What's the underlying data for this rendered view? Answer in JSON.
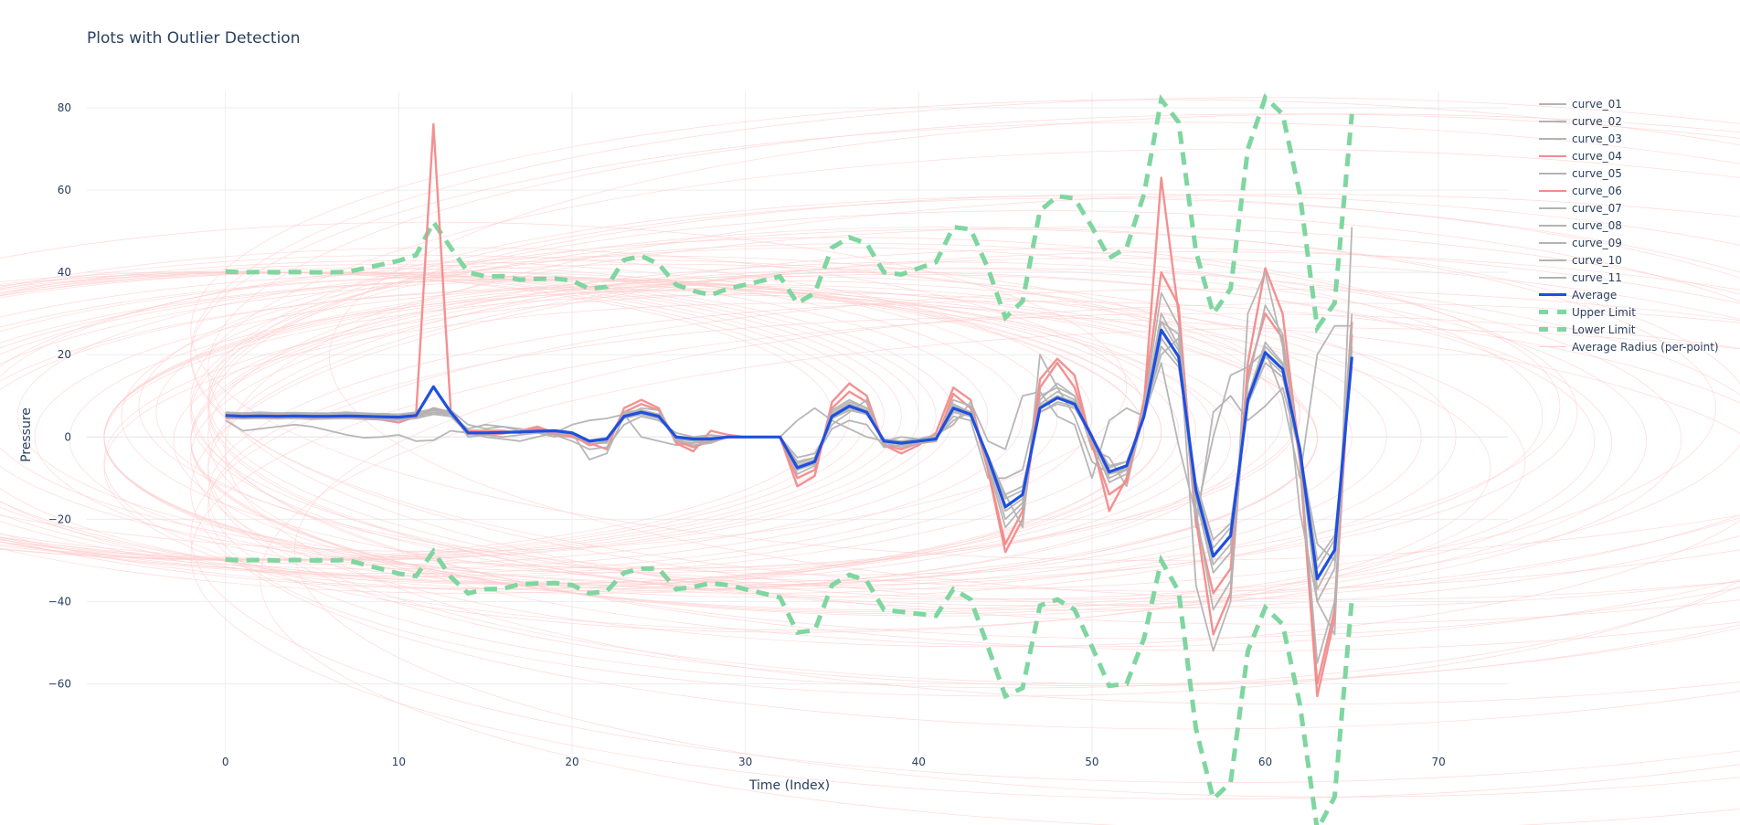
{
  "chart_data": {
    "type": "line",
    "title": "Plots with Outlier Detection",
    "xlabel": "Time (Index)",
    "ylabel": "Pressure",
    "xlim": [
      -8,
      74
    ],
    "ylim": [
      -77,
      84
    ],
    "x_ticks": [
      0,
      10,
      20,
      30,
      40,
      50,
      60,
      70
    ],
    "y_ticks": [
      -60,
      -40,
      -20,
      0,
      20,
      40,
      60,
      80
    ],
    "grid": true,
    "legend_position": "right",
    "colors": {
      "normal": "#b3b3b3",
      "outlier": "#f28b8b",
      "average": "#1f4fe0",
      "limit": "#7fd6a0",
      "radius": "#ffcccc"
    },
    "average": [
      5.2,
      5.0,
      5.1,
      5.0,
      5.1,
      5.0,
      5.0,
      5.1,
      5.0,
      4.9,
      4.8,
      5.2,
      12.2,
      6.0,
      1.0,
      1.0,
      1.1,
      1.2,
      1.4,
      1.5,
      1.0,
      -1.0,
      -0.5,
      5.0,
      6.0,
      5.0,
      0.0,
      -0.5,
      -0.5,
      0.0,
      0.0,
      0.0,
      0.0,
      -7.5,
      -6.0,
      5.0,
      7.5,
      6.0,
      -1.0,
      -1.5,
      -1.0,
      -0.5,
      7.0,
      5.5,
      -5.0,
      -17.0,
      -14.0,
      7.0,
      9.5,
      8.0,
      0.0,
      -8.5,
      -7.0,
      5.0,
      26.0,
      19.5,
      -13.0,
      -29.0,
      -24.0,
      9.0,
      20.5,
      16.5,
      -3.0,
      -34.5,
      -27.5,
      19.5
    ],
    "radius": [
      35,
      35,
      35,
      35,
      35,
      35,
      35,
      35,
      36,
      37,
      38,
      39,
      40,
      40,
      39,
      38,
      38,
      37,
      37,
      37,
      37,
      37,
      37,
      38,
      38,
      37,
      37,
      36,
      35,
      36,
      37,
      38,
      39,
      40,
      41,
      41,
      41,
      41,
      41,
      41,
      42,
      43,
      44,
      45,
      46,
      46,
      47,
      48,
      49,
      50,
      51,
      52,
      53,
      54,
      56,
      57,
      58,
      59,
      60,
      61,
      62,
      62,
      62,
      61,
      60,
      59
    ],
    "series": [
      {
        "name": "curve_01",
        "outlier": false,
        "values": [
          5.8,
          5.6,
          5.7,
          5.5,
          5.6,
          5.4,
          5.5,
          5.6,
          5.4,
          5.3,
          5.2,
          5.6,
          6.5,
          6.0,
          0.5,
          0.8,
          1.0,
          1.2,
          1.5,
          1.5,
          1.0,
          -1.0,
          -0.5,
          5.5,
          6.5,
          5.0,
          -0.5,
          -1.0,
          -0.5,
          0.0,
          0.0,
          0.0,
          0.0,
          -8.0,
          -6.5,
          6.0,
          8.5,
          7.0,
          -1.0,
          -2.0,
          -1.0,
          -0.5,
          8.0,
          6.0,
          -6.0,
          -20.0,
          -16.0,
          8.0,
          11.0,
          9.0,
          0.5,
          -10.0,
          -8.0,
          6.0,
          30.0,
          22.0,
          -15.0,
          -33.0,
          -28.0,
          10.0,
          23.0,
          18.0,
          -4.0,
          -40.0,
          -32.0,
          22.0
        ]
      },
      {
        "name": "curve_02",
        "outlier": false,
        "values": [
          4.8,
          4.6,
          4.9,
          4.7,
          4.8,
          4.6,
          4.7,
          4.8,
          4.6,
          4.5,
          4.4,
          4.8,
          6.0,
          5.5,
          1.0,
          1.2,
          1.3,
          1.4,
          1.6,
          1.7,
          1.2,
          -0.8,
          -0.2,
          4.5,
          5.5,
          4.5,
          0.2,
          -0.2,
          0.0,
          0.0,
          0.0,
          0.0,
          0.0,
          -7.0,
          -5.5,
          4.5,
          7.0,
          5.5,
          -0.5,
          -1.0,
          -0.5,
          0.0,
          6.5,
          5.0,
          -4.5,
          -15.0,
          -13.0,
          6.0,
          8.5,
          7.5,
          0.0,
          -7.5,
          -6.0,
          4.5,
          24.0,
          18.0,
          -12.0,
          -27.0,
          -22.0,
          8.5,
          19.5,
          15.5,
          -2.5,
          -32.0,
          -25.0,
          18.0
        ]
      },
      {
        "name": "curve_03",
        "outlier": false,
        "values": [
          4.0,
          1.5,
          2.0,
          2.5,
          3.0,
          2.5,
          1.5,
          0.5,
          -0.2,
          0.0,
          0.5,
          -1.0,
          -0.8,
          1.5,
          1.0,
          0.0,
          -0.5,
          -1.0,
          0.0,
          1.0,
          3.0,
          4.0,
          4.5,
          5.5,
          0.0,
          -1.0,
          -2.0,
          -1.5,
          -0.5,
          0.0,
          0.0,
          0.0,
          0.0,
          -6.0,
          -5.0,
          2.0,
          4.0,
          3.0,
          -2.5,
          -2.0,
          -1.5,
          0.0,
          5.0,
          4.0,
          -10.0,
          -10.0,
          -8.0,
          10.0,
          12.0,
          10.0,
          -3.0,
          -5.0,
          -12.0,
          6.0,
          20.0,
          24.0,
          -22.0,
          6.0,
          10.0,
          4.0,
          7.5,
          12.0,
          -4.0,
          -26.0,
          -30.0,
          30.0
        ]
      },
      {
        "name": "curve_04",
        "outlier": true,
        "values": [
          5.5,
          5.3,
          5.4,
          5.3,
          5.2,
          5.1,
          5.0,
          5.2,
          5.1,
          5.0,
          4.9,
          5.5,
          76.0,
          6.5,
          1.0,
          0.5,
          0.8,
          1.5,
          2.5,
          1.0,
          0.5,
          -2.0,
          -1.0,
          6.0,
          8.0,
          6.5,
          -1.0,
          -2.5,
          -1.0,
          0.0,
          0.0,
          0.0,
          0.0,
          -10.0,
          -8.0,
          7.0,
          11.0,
          8.5,
          -2.0,
          -3.0,
          -1.5,
          -1.0,
          10.5,
          7.0,
          -8.0,
          -28.0,
          -20.0,
          12.0,
          18.0,
          12.0,
          -1.0,
          -18.0,
          -10.0,
          8.0,
          63.0,
          30.0,
          -20.0,
          -38.0,
          -32.0,
          15.0,
          30.0,
          24.0,
          -6.0,
          -63.0,
          -44.0,
          28.0
        ]
      },
      {
        "name": "curve_05",
        "outlier": false,
        "values": [
          5.2,
          5.0,
          5.2,
          5.0,
          5.1,
          5.0,
          5.0,
          5.1,
          5.0,
          4.9,
          4.8,
          5.2,
          6.5,
          5.5,
          1.0,
          1.0,
          1.1,
          1.2,
          1.4,
          1.5,
          1.0,
          -1.0,
          -0.5,
          5.0,
          6.0,
          5.0,
          0.0,
          -0.5,
          -0.5,
          0.0,
          0.0,
          0.0,
          0.0,
          -7.5,
          -6.0,
          5.0,
          7.5,
          6.0,
          -1.0,
          -1.5,
          -1.0,
          -0.5,
          7.0,
          5.5,
          -5.0,
          -17.0,
          -14.0,
          7.0,
          9.5,
          8.0,
          0.0,
          -8.5,
          -7.0,
          5.0,
          26.0,
          19.5,
          -13.0,
          -29.0,
          -24.0,
          9.0,
          20.5,
          16.5,
          -3.0,
          -34.5,
          -27.5,
          19.5
        ]
      },
      {
        "name": "curve_06",
        "outlier": true,
        "values": [
          5.0,
          4.8,
          4.9,
          4.9,
          5.0,
          4.7,
          4.8,
          4.9,
          4.6,
          4.2,
          3.5,
          5.0,
          7.0,
          6.0,
          1.5,
          1.5,
          1.5,
          1.0,
          2.0,
          0.5,
          0.0,
          -1.5,
          -3.0,
          7.0,
          9.0,
          7.0,
          -1.5,
          -3.5,
          1.5,
          0.5,
          0.0,
          0.0,
          0.0,
          -12.0,
          -9.5,
          8.5,
          13.0,
          10.0,
          -2.0,
          -4.0,
          -2.0,
          1.0,
          12.0,
          9.0,
          -8.0,
          -26.0,
          -18.0,
          14.0,
          19.0,
          15.0,
          -2.0,
          -14.0,
          -11.0,
          9.0,
          40.0,
          32.0,
          -20.0,
          -48.0,
          -38.0,
          18.0,
          41.0,
          30.0,
          -5.0,
          -60.0,
          -42.0,
          25.0
        ]
      },
      {
        "name": "curve_07",
        "outlier": false,
        "values": [
          5.0,
          5.2,
          5.0,
          5.3,
          5.0,
          5.2,
          5.0,
          5.3,
          5.0,
          5.2,
          5.0,
          5.1,
          6.0,
          5.0,
          2.0,
          3.0,
          2.5,
          2.0,
          1.0,
          0.0,
          1.0,
          -5.5,
          -4.0,
          5.0,
          7.0,
          6.5,
          -0.5,
          -2.0,
          -1.5,
          0.0,
          0.0,
          0.0,
          0.0,
          -5.0,
          -4.0,
          3.0,
          6.0,
          9.0,
          -2.5,
          -1.0,
          -0.5,
          0.0,
          4.0,
          6.0,
          -5.5,
          -14.0,
          -22.0,
          20.0,
          12.0,
          5.0,
          -6.0,
          -9.0,
          -8.0,
          6.0,
          28.0,
          25.0,
          -36.0,
          -52.0,
          -40.0,
          30.0,
          40.0,
          22.0,
          -18.0,
          -40.0,
          -48.0,
          51.0
        ]
      },
      {
        "name": "curve_08",
        "outlier": false,
        "values": [
          6.0,
          5.8,
          6.0,
          5.8,
          5.9,
          5.8,
          5.8,
          6.0,
          5.8,
          5.6,
          5.5,
          6.0,
          6.8,
          6.2,
          0.0,
          0.5,
          0.0,
          0.5,
          1.0,
          1.5,
          1.0,
          -1.5,
          -1.5,
          6.0,
          6.5,
          5.5,
          -1.0,
          -1.5,
          -1.0,
          0.0,
          0.0,
          0.0,
          0.0,
          -9.0,
          -7.0,
          6.5,
          9.0,
          7.0,
          -1.5,
          -2.5,
          -1.5,
          -1.0,
          9.0,
          7.5,
          -7.0,
          -22.0,
          -17.0,
          9.0,
          13.0,
          10.0,
          -1.0,
          -11.0,
          -9.0,
          7.0,
          35.0,
          27.0,
          -18.0,
          -42.0,
          -35.0,
          13.0,
          32.0,
          25.0,
          -5.0,
          -55.0,
          -40.0,
          27.0
        ]
      },
      {
        "name": "curve_09",
        "outlier": false,
        "values": [
          5.4,
          5.2,
          5.3,
          5.2,
          5.3,
          5.1,
          5.2,
          5.3,
          5.1,
          5.0,
          4.9,
          5.4,
          7.0,
          5.8,
          1.2,
          1.0,
          1.3,
          1.4,
          1.6,
          1.3,
          0.8,
          -1.2,
          -0.8,
          5.5,
          6.5,
          5.5,
          -0.3,
          -0.8,
          -0.5,
          0.0,
          0.0,
          0.0,
          0.0,
          -8.0,
          -6.5,
          5.5,
          8.0,
          6.5,
          -1.2,
          -1.8,
          -1.2,
          -0.5,
          7.5,
          6.0,
          -5.5,
          -18.0,
          -15.0,
          7.5,
          10.0,
          8.5,
          0.0,
          -9.0,
          -7.5,
          5.5,
          28.0,
          21.0,
          -14.0,
          -31.0,
          -26.0,
          9.5,
          22.0,
          17.5,
          -3.5,
          -37.0,
          -29.0,
          21.0
        ]
      },
      {
        "name": "curve_10",
        "outlier": false,
        "values": [
          4.5,
          4.4,
          4.5,
          4.4,
          4.5,
          4.3,
          4.4,
          4.5,
          4.3,
          4.2,
          4.1,
          4.5,
          5.5,
          5.0,
          0.8,
          0.9,
          1.0,
          1.1,
          1.3,
          1.4,
          0.9,
          -0.8,
          -0.4,
          4.5,
          5.5,
          4.5,
          0.1,
          -0.4,
          -0.3,
          0.0,
          0.0,
          0.0,
          0.0,
          -6.5,
          -5.0,
          4.5,
          6.5,
          5.5,
          -0.8,
          -1.2,
          -0.8,
          -0.3,
          6.0,
          5.0,
          -4.5,
          -14.0,
          -12.0,
          6.0,
          8.0,
          7.0,
          0.0,
          -7.0,
          -6.0,
          4.5,
          22.0,
          17.0,
          -11.0,
          -25.0,
          -21.0,
          8.0,
          18.0,
          14.5,
          -2.5,
          -30.0,
          -24.0,
          17.0
        ]
      },
      {
        "name": "curve_11",
        "outlier": false,
        "values": [
          5.5,
          5.7,
          5.5,
          5.8,
          5.5,
          5.7,
          5.6,
          5.8,
          5.5,
          5.7,
          5.4,
          5.8,
          5.5,
          6.5,
          3.0,
          2.0,
          2.5,
          1.5,
          1.0,
          0.5,
          -1.0,
          -3.0,
          -2.5,
          3.0,
          5.0,
          4.0,
          1.0,
          0.0,
          0.5,
          0.0,
          0.0,
          0.0,
          0.0,
          4.0,
          7.0,
          4.0,
          2.0,
          0.0,
          -1.0,
          0.0,
          -0.5,
          0.5,
          3.0,
          8.5,
          -1.0,
          -3.0,
          10.0,
          11.0,
          5.0,
          3.0,
          -10.0,
          4.0,
          7.0,
          5.0,
          18.0,
          -2.0,
          -19.0,
          0.0,
          15.0,
          17.0,
          21.0,
          10.0,
          -10.0,
          20.0,
          27.0,
          27.0
        ]
      }
    ],
    "legend": [
      "curve_01",
      "curve_02",
      "curve_03",
      "curve_04",
      "curve_05",
      "curve_06",
      "curve_07",
      "curve_08",
      "curve_09",
      "curve_10",
      "curve_11",
      "Average",
      "Upper Limit",
      "Lower Limit",
      "Average Radius (per-point)"
    ],
    "limit_labels": {
      "average": "Average",
      "upper": "Upper Limit",
      "lower": "Lower Limit",
      "radius": "Average Radius (per-point)"
    }
  }
}
